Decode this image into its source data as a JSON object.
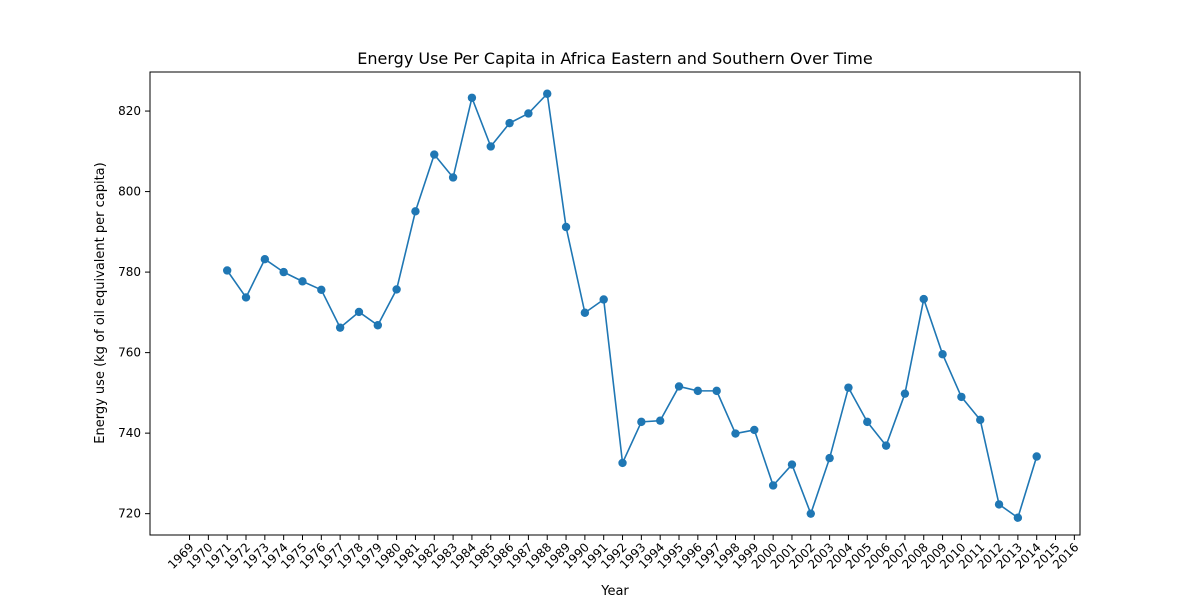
{
  "chart_data": {
    "type": "line",
    "title": "Energy Use Per Capita in Africa Eastern and Southern Over Time",
    "xlabel": "Year",
    "ylabel": "Energy use (kg of oil equivalent per capita)",
    "x_ticks": [
      1969,
      1970,
      1971,
      1972,
      1973,
      1974,
      1975,
      1976,
      1977,
      1978,
      1979,
      1980,
      1981,
      1982,
      1983,
      1984,
      1985,
      1986,
      1987,
      1988,
      1989,
      1990,
      1991,
      1992,
      1993,
      1994,
      1995,
      1996,
      1997,
      1998,
      1999,
      2000,
      2001,
      2002,
      2003,
      2004,
      2005,
      2006,
      2007,
      2008,
      2009,
      2010,
      2011,
      2012,
      2013,
      2014,
      2015,
      2016
    ],
    "y_ticks": [
      720,
      740,
      760,
      780,
      800,
      820
    ],
    "xlim": [
      1966.9,
      2016.3
    ],
    "ylim": [
      714.7,
      829.7
    ],
    "grid": false,
    "color": "#1f77b4",
    "series": [
      {
        "name": "",
        "x": [
          1971,
          1972,
          1973,
          1974,
          1975,
          1976,
          1977,
          1978,
          1979,
          1980,
          1981,
          1982,
          1983,
          1984,
          1985,
          1986,
          1987,
          1988,
          1989,
          1990,
          1991,
          1992,
          1993,
          1994,
          1995,
          1996,
          1997,
          1998,
          1999,
          2000,
          2001,
          2002,
          2003,
          2004,
          2005,
          2006,
          2007,
          2008,
          2009,
          2010,
          2011,
          2012,
          2013,
          2014
        ],
        "y": [
          780.4,
          773.7,
          783.2,
          780.0,
          777.7,
          775.6,
          766.2,
          770.1,
          766.8,
          775.7,
          795.1,
          809.2,
          803.5,
          823.3,
          811.2,
          817.0,
          819.4,
          824.3,
          791.2,
          769.9,
          773.2,
          732.6,
          742.8,
          743.1,
          751.6,
          750.5,
          750.5,
          739.9,
          740.8,
          727.0,
          732.2,
          720.0,
          733.8,
          751.3,
          742.8,
          736.9,
          749.8,
          773.3,
          759.6,
          749.0,
          743.3,
          722.3,
          719.0,
          734.2
        ]
      }
    ]
  }
}
